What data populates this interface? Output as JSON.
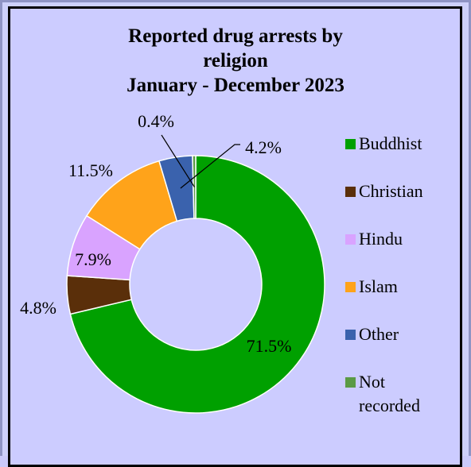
{
  "chart_data": {
    "type": "pie",
    "donut": true,
    "title": [
      "Reported drug arrests by",
      "religion",
      "January - December  2023"
    ],
    "categories": [
      "Buddhist",
      "Christian",
      "Hindu",
      "Islam",
      "Other",
      "Not recorded"
    ],
    "values": [
      71.5,
      4.8,
      7.9,
      11.5,
      4.2,
      0.4
    ],
    "labels": [
      "71.5%",
      "4.8%",
      "7.9%",
      "11.5%",
      "4.2%",
      "0.4%"
    ],
    "colors": [
      "#00a000",
      "#5a2f0a",
      "#d9a3ff",
      "#ffa31a",
      "#3a62ad",
      "#5a9a45"
    ],
    "legend": {
      "position": "right",
      "entries": [
        [
          "Buddhist"
        ],
        [
          "Christian"
        ],
        [
          "Hindu"
        ],
        [
          "Islam"
        ],
        [
          "Other"
        ],
        [
          "Not",
          "recorded"
        ]
      ]
    }
  }
}
